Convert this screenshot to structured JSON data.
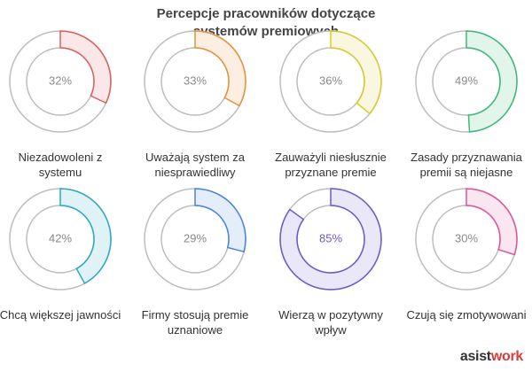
{
  "chart_data": {
    "type": "donut-grid",
    "title": "Percepcje pracowników dotyczące systemów premiowych",
    "categories": [
      "Niezadowoleni z systemu",
      "Uważają system za niesprawiedliwy",
      "Zauważyli niesłusznie przyznane premie",
      "Zasady przyznawania premii są niejasne",
      "Chcą większej jawności",
      "Firmy stosują premie uznaniowe",
      "Wierzą w pozytywny wpływ",
      "Czują się zmotywowani"
    ],
    "values": [
      32,
      33,
      36,
      49,
      42,
      29,
      85,
      30
    ],
    "value_labels": [
      "32%",
      "33%",
      "36%",
      "49%",
      "42%",
      "29%",
      "85%",
      "30%"
    ],
    "colors": [
      "#e06060",
      "#e8923a",
      "#d8cc2c",
      "#3dbb7a",
      "#2aaac4",
      "#4a84e0",
      "#6a5cd0",
      "#e0559a"
    ],
    "value_label_colors": [
      "#8a8a8a",
      "#8a8a8a",
      "#8a8a8a",
      "#8a8a8a",
      "#8a8a8a",
      "#8a8a8a",
      "#6a5cd0",
      "#8a8a8a"
    ]
  },
  "brand": {
    "first": "asist",
    "second": "work"
  }
}
